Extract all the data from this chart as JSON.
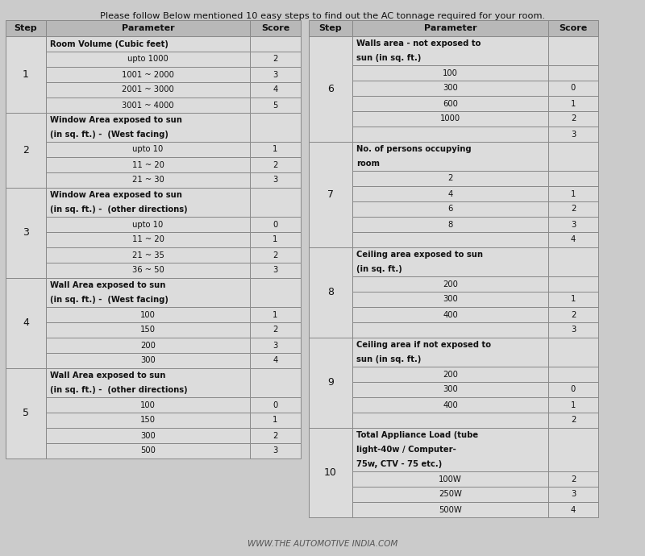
{
  "title": "Please follow Below mentioned 10 easy steps to find out the AC tonnage required for your room.",
  "bg_color": "#cbcbcb",
  "cell_bg": "#dcdcdc",
  "header_bg": "#b8b8b8",
  "line_color": "#888888",
  "watermark": "www.the automotive india.com",
  "left_table": {
    "rows": [
      {
        "step": "1",
        "category": "Room Volume (Cubic feet)",
        "cat_bold": true,
        "cat_indent": true,
        "items": [
          {
            "param": "upto 1000",
            "score": "2"
          },
          {
            "param": "1001 ~ 2000",
            "score": "3"
          },
          {
            "param": "2001 ~ 3000",
            "score": "4"
          },
          {
            "param": "3001 ~ 4000",
            "score": "5"
          }
        ]
      },
      {
        "step": "2",
        "category": "Window Area exposed to sun\n(in sq. ft.) -  (West facing)",
        "cat_bold": true,
        "cat_indent": false,
        "items": [
          {
            "param": "upto 10",
            "score": "1"
          },
          {
            "param": "11 ~ 20",
            "score": "2"
          },
          {
            "param": "21 ~ 30",
            "score": "3"
          }
        ]
      },
      {
        "step": "3",
        "category": "Window Area exposed to sun\n(in sq. ft.) -  (other directions)",
        "cat_bold": true,
        "cat_indent": false,
        "items": [
          {
            "param": "upto 10",
            "score": "0"
          },
          {
            "param": "11 ~ 20",
            "score": "1"
          },
          {
            "param": "21 ~ 35",
            "score": "2"
          },
          {
            "param": "36 ~ 50",
            "score": "3"
          }
        ]
      },
      {
        "step": "4",
        "category": "Wall Area exposed to sun\n(in sq. ft.) -  (West facing)",
        "cat_bold": true,
        "cat_indent": false,
        "items": [
          {
            "param": "100",
            "score": "1"
          },
          {
            "param": "150",
            "score": "2"
          },
          {
            "param": "200",
            "score": "3"
          },
          {
            "param": "300",
            "score": "4"
          }
        ]
      },
      {
        "step": "5",
        "category": "Wall Area exposed to sun\n(in sq. ft.) -  (other directions)",
        "cat_bold": true,
        "cat_indent": false,
        "items": [
          {
            "param": "100",
            "score": "0"
          },
          {
            "param": "150",
            "score": "1"
          },
          {
            "param": "300",
            "score": "2"
          },
          {
            "param": "500",
            "score": "3"
          }
        ]
      }
    ]
  },
  "right_table": {
    "rows": [
      {
        "step": "6",
        "category": "Walls area - not exposed to\nsun (in sq. ft.)",
        "cat_bold": true,
        "items": [
          {
            "param": "100",
            "score": ""
          },
          {
            "param": "300",
            "score": "0"
          },
          {
            "param": "600",
            "score": "1"
          },
          {
            "param": "1000",
            "score": "2"
          },
          {
            "param": "",
            "score": "3"
          }
        ]
      },
      {
        "step": "7",
        "category": "No. of persons occupying\nroom",
        "cat_bold": true,
        "items": [
          {
            "param": "2",
            "score": ""
          },
          {
            "param": "4",
            "score": "1"
          },
          {
            "param": "6",
            "score": "2"
          },
          {
            "param": "8",
            "score": "3"
          },
          {
            "param": "",
            "score": "4"
          }
        ]
      },
      {
        "step": "8",
        "category": "Ceiling area exposed to sun\n(in sq. ft.)",
        "cat_bold": true,
        "items": [
          {
            "param": "200",
            "score": ""
          },
          {
            "param": "300",
            "score": "1"
          },
          {
            "param": "400",
            "score": "2"
          },
          {
            "param": "",
            "score": "3"
          }
        ]
      },
      {
        "step": "9",
        "category": "Ceiling area if not exposed to\nsun (in sq. ft.)",
        "cat_bold": true,
        "items": [
          {
            "param": "200",
            "score": ""
          },
          {
            "param": "300",
            "score": "0"
          },
          {
            "param": "400",
            "score": "1"
          },
          {
            "param": "",
            "score": "2"
          }
        ]
      },
      {
        "step": "10",
        "category": "Total Appliance Load (tube\nlight-40w / Computer-\n75w, CTV - 75 etc.)",
        "cat_bold": true,
        "items": [
          {
            "param": "100W",
            "score": "2"
          },
          {
            "param": "250W",
            "score": "3"
          },
          {
            "param": "500W",
            "score": "4"
          }
        ]
      }
    ]
  }
}
